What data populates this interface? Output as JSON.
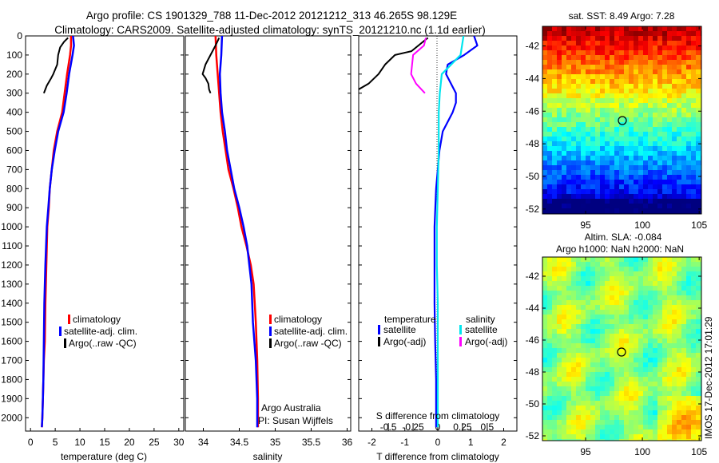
{
  "titles": {
    "line1": "Argo profile: CS 1901329_788 11-Dec-2012 20121212_313 46.265S 98.129E",
    "line2": "Climatology: CARS2009. Satellite-adjusted climatology: synTS_20121210.nc (1.1d earlier)"
  },
  "legend": {
    "climatology": "climatology",
    "sat_adj": "satellite-adj. clim.",
    "argo_raw": "Argo(..raw -QC)",
    "temperature": "temperature",
    "salinity": "salinity",
    "satellite": "satellite",
    "argo_adj": "Argo(-adj)"
  },
  "notes": {
    "org": "Argo Australia",
    "pi": "PI: Susan Wijffels",
    "imos": "IMOS 17-Dec-2012 17:01:29"
  },
  "map_titles": {
    "sst": "sat. SST: 8.49 Argo: 7.28",
    "sla1": "Altim. SLA: -0.084",
    "sla2": "Argo h1000: NaN h2000: NaN"
  },
  "colors": {
    "climatology": "#ff0000",
    "satellite_adj": "#0000ff",
    "argo": "#000000",
    "satellite_s": "#00e5ee",
    "argo_s": "#ff00ff"
  },
  "chart_data": [
    {
      "type": "line",
      "name": "temperature profile",
      "xlabel": "temperature (deg C)",
      "ylabel": "",
      "xlim": [
        -1,
        31
      ],
      "ylim": [
        2070,
        0
      ],
      "xticks": [
        "0",
        "5",
        "10",
        "15",
        "20",
        "25",
        "30"
      ],
      "yticks": [
        "0",
        "100",
        "200",
        "300",
        "400",
        "500",
        "600",
        "700",
        "800",
        "900",
        "1000",
        "1100",
        "1200",
        "1300",
        "1400",
        "1500",
        "1600",
        "1700",
        "1800",
        "1900",
        "2000"
      ],
      "series": [
        {
          "name": "climatology",
          "x": [
            8.2,
            8.2,
            8.0,
            7.4,
            6.9,
            6.4,
            5.4,
            4.7,
            4.3,
            3.9,
            3.7,
            3.4,
            3.2,
            3.0,
            2.9,
            2.7,
            2.6,
            2.5,
            2.4,
            2.3
          ],
          "y": [
            0,
            50,
            100,
            200,
            300,
            400,
            500,
            600,
            700,
            800,
            900,
            1000,
            1200,
            1400,
            1600,
            1700,
            1800,
            1900,
            2000,
            2050
          ]
        },
        {
          "name": "satellite-adj. clim.",
          "x": [
            8.6,
            8.8,
            8.5,
            7.8,
            7.3,
            6.7,
            5.6,
            4.9,
            4.3,
            3.9,
            3.6,
            3.3,
            3.0,
            2.8,
            2.7,
            2.6,
            2.5,
            2.4,
            2.3
          ],
          "y": [
            0,
            50,
            100,
            200,
            300,
            400,
            500,
            600,
            700,
            800,
            900,
            1000,
            1200,
            1400,
            1600,
            1800,
            1900,
            2000,
            2050
          ]
        },
        {
          "name": "Argo(..raw -QC)",
          "x": [
            7.6,
            6.8,
            6.0,
            5.6,
            5.4,
            4.6,
            4.2,
            3.3,
            2.7
          ],
          "y": [
            10,
            30,
            60,
            100,
            150,
            200,
            220,
            260,
            300
          ]
        }
      ]
    },
    {
      "type": "line",
      "name": "salinity profile",
      "xlabel": "salinity",
      "ylabel": "",
      "xlim": [
        33.75,
        36.05
      ],
      "ylim": [
        2070,
        0
      ],
      "xticks": [
        "34",
        "34.5",
        "35",
        "35.5",
        "36"
      ],
      "series": [
        {
          "name": "climatology",
          "x": [
            34.17,
            34.18,
            34.2,
            34.22,
            34.24,
            34.27,
            34.31,
            34.35,
            34.42,
            34.48,
            34.53,
            34.6,
            34.66,
            34.7,
            34.73,
            34.75,
            34.76,
            34.76
          ],
          "y": [
            0,
            100,
            200,
            300,
            400,
            500,
            600,
            700,
            800,
            900,
            1000,
            1100,
            1200,
            1300,
            1500,
            1700,
            1900,
            2050
          ]
        },
        {
          "name": "satellite-adj. clim.",
          "x": [
            34.26,
            34.25,
            34.23,
            34.24,
            34.26,
            34.3,
            34.33,
            34.38,
            34.43,
            34.5,
            34.56,
            34.61,
            34.64,
            34.67,
            34.69,
            34.73,
            34.75,
            34.75
          ],
          "y": [
            0,
            100,
            200,
            300,
            400,
            500,
            600,
            700,
            800,
            900,
            1000,
            1100,
            1200,
            1300,
            1500,
            1700,
            1900,
            2050
          ]
        },
        {
          "name": "Argo(..raw -QC)",
          "x": [
            34.22,
            34.17,
            34.1,
            34.03,
            33.99,
            34.03,
            34.07,
            34.08,
            34.1
          ],
          "y": [
            10,
            50,
            100,
            150,
            200,
            220,
            250,
            280,
            300
          ]
        }
      ]
    },
    {
      "type": "line",
      "name": "difference from climatology",
      "xlabel": "T difference from climatology",
      "xlabel_top": "S difference from climatology",
      "xlim": [
        -2.4,
        2.4
      ],
      "xlim_s": [
        -0.8,
        0.8
      ],
      "ylim": [
        2070,
        0
      ],
      "xticks": [
        "-2",
        "-1",
        "0",
        "1",
        "2"
      ],
      "xticks_s": [
        "-0.5",
        "-0.25",
        "0",
        "0.25",
        "0.5"
      ],
      "series": [
        {
          "name": "temperature satellite",
          "x": [
            1.1,
            1.2,
            0.8,
            0.3,
            0.25,
            0.55,
            0.55,
            0.45,
            0.15,
            0.05,
            0.0,
            -0.05,
            -0.1,
            -0.1,
            -0.1,
            -0.08,
            -0.05,
            -0.05,
            -0.05,
            -0.05
          ],
          "y": [
            0,
            50,
            100,
            150,
            200,
            300,
            350,
            400,
            500,
            600,
            700,
            800,
            1000,
            1200,
            1400,
            1600,
            1800,
            1900,
            2000,
            2050
          ]
        },
        {
          "name": "temperature Argo(-adj)",
          "x": [
            -0.3,
            -0.8,
            -1.3,
            -1.6,
            -1.8,
            -2.1,
            -2.6
          ],
          "y": [
            10,
            80,
            100,
            150,
            200,
            250,
            300
          ]
        },
        {
          "name": "salinity satellite",
          "x": [
            0.26,
            0.23,
            0.04,
            0.02,
            0.01,
            0.01,
            0.0,
            -0.01,
            -0.01,
            0.0,
            0.0,
            0.0,
            0.0
          ],
          "y": [
            0,
            100,
            200,
            300,
            400,
            600,
            800,
            1000,
            1200,
            1400,
            1600,
            1800,
            2050
          ]
        },
        {
          "name": "salinity Argo(-adj)",
          "x": [
            -0.12,
            -0.14,
            -0.25,
            -0.27,
            -0.22,
            -0.13
          ],
          "y": [
            10,
            50,
            100,
            200,
            250,
            300
          ]
        }
      ]
    },
    {
      "type": "heatmap",
      "name": "satellite SST map",
      "title": "sat. SST: 8.49 Argo: 7.28",
      "xlim": [
        91.2,
        105.2
      ],
      "ylim": [
        -52.3,
        -40.8
      ],
      "xticks": [
        "95",
        "100",
        "105"
      ],
      "yticks": [
        "-42",
        "-44",
        "-46",
        "-48",
        "-50",
        "-52"
      ],
      "marker": {
        "lon": 98.129,
        "lat": -46.265
      }
    },
    {
      "type": "heatmap",
      "name": "altimetry SLA map",
      "title": "Altim. SLA: -0.084",
      "subtitle": "Argo h1000: NaN h2000: NaN",
      "xlim": [
        91.2,
        105.2
      ],
      "ylim": [
        -52.3,
        -40.8
      ],
      "xticks": [
        "95",
        "100",
        "105"
      ],
      "yticks": [
        "-42",
        "-44",
        "-46",
        "-48",
        "-50",
        "-52"
      ],
      "marker": {
        "lon": 98.129,
        "lat": -46.265
      }
    }
  ]
}
